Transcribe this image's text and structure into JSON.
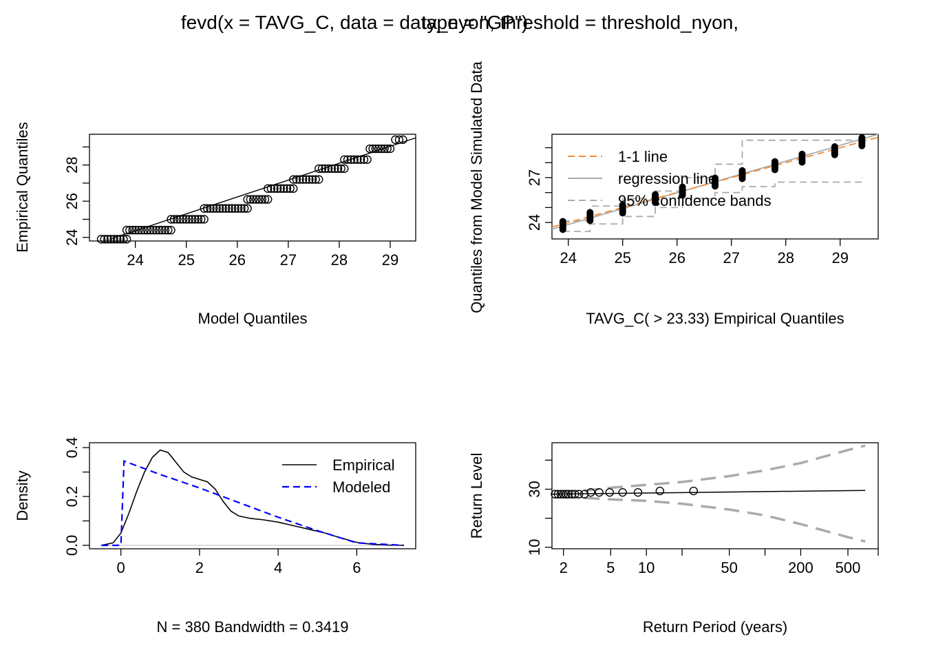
{
  "title": {
    "line1": "fevd(x = TAVG_C, data = data_nyon, threshold = threshold_nyon,",
    "line2": "type = \"GP\")"
  },
  "chart_data": [
    {
      "type": "scatter",
      "panel": "qq-plot",
      "xlabel": "Model Quantiles",
      "ylabel": "Empirical Quantiles",
      "xlim": [
        23.1,
        29.5
      ],
      "ylim": [
        23.8,
        29.7
      ],
      "xticks": [
        24,
        25,
        26,
        27,
        28,
        29
      ],
      "yticks": [
        24,
        26,
        28
      ],
      "steps": [
        {
          "y": 23.9,
          "x0": 23.33,
          "x1": 23.83
        },
        {
          "y": 24.4,
          "x0": 23.83,
          "x1": 24.7
        },
        {
          "y": 25.0,
          "x0": 24.7,
          "x1": 25.35
        },
        {
          "y": 25.6,
          "x0": 25.35,
          "x1": 26.2
        },
        {
          "y": 26.1,
          "x0": 26.2,
          "x1": 26.6
        },
        {
          "y": 26.7,
          "x0": 26.6,
          "x1": 27.1
        },
        {
          "y": 27.2,
          "x0": 27.1,
          "x1": 27.6
        },
        {
          "y": 27.8,
          "x0": 27.6,
          "x1": 28.1
        },
        {
          "y": 28.3,
          "x0": 28.1,
          "x1": 28.55
        },
        {
          "y": 28.9,
          "x0": 28.6,
          "x1": 29.0
        },
        {
          "y": 29.4,
          "x0": 29.1,
          "x1": 29.25
        }
      ],
      "fit_line": [
        [
          23.5,
          23.9
        ],
        [
          29.5,
          29.5
        ]
      ]
    },
    {
      "type": "scatter",
      "panel": "qq-simulated",
      "xlabel": "TAVG_C( > 23.33) Empirical Quantiles",
      "ylabel": "Quantiles from Model Simulated Data",
      "xlim": [
        23.7,
        29.7
      ],
      "ylim": [
        22.9,
        29.9
      ],
      "xticks": [
        24,
        25,
        26,
        27,
        28,
        29
      ],
      "yticks": [
        24,
        27
      ],
      "legend": {
        "items": [
          {
            "label": "1-1 line",
            "color": "#f28a30",
            "style": "dashed"
          },
          {
            "label": "regression line",
            "color": "#aaaaaa",
            "style": "solid"
          },
          {
            "label": "95% confidence bands",
            "color": "#aaaaaa",
            "style": "dashed"
          }
        ],
        "position": "top-left"
      },
      "x_points": [
        23.9,
        24.4,
        25.0,
        25.6,
        26.1,
        26.7,
        27.2,
        27.8,
        28.3,
        28.9,
        29.4
      ],
      "y_points": [
        23.8,
        24.4,
        24.9,
        25.6,
        26.1,
        26.7,
        27.2,
        27.8,
        28.3,
        28.8,
        29.4
      ],
      "upper_band": [
        [
          23.9,
          24.1
        ],
        [
          24.4,
          25.1
        ],
        [
          25.0,
          25.6
        ],
        [
          25.6,
          26.1
        ],
        [
          26.1,
          27.0
        ],
        [
          26.7,
          27.9
        ],
        [
          27.2,
          29.5
        ],
        [
          29.4,
          29.5
        ]
      ],
      "lower_band": [
        [
          23.9,
          23.4
        ],
        [
          24.4,
          23.9
        ],
        [
          25.0,
          24.4
        ],
        [
          25.6,
          25.0
        ],
        [
          26.1,
          25.6
        ],
        [
          26.7,
          26.0
        ],
        [
          27.2,
          26.4
        ],
        [
          27.8,
          26.7
        ],
        [
          29.4,
          27.0
        ]
      ]
    },
    {
      "type": "line",
      "panel": "density",
      "xlabel": "N = 380   Bandwidth = 0.3419",
      "ylabel": "Density",
      "xlim": [
        -0.8,
        7.5
      ],
      "ylim": [
        0,
        0.42
      ],
      "xticks": [
        0,
        2,
        4,
        6
      ],
      "yticks": [
        0.0,
        0.2,
        0.4
      ],
      "legend": {
        "items": [
          {
            "label": "Empirical",
            "color": "#000000",
            "style": "solid"
          },
          {
            "label": "Modeled",
            "color": "#0000ff",
            "style": "dashed"
          }
        ],
        "position": "top-right"
      },
      "series": [
        {
          "name": "Empirical",
          "x": [
            -0.5,
            -0.2,
            0.0,
            0.2,
            0.4,
            0.6,
            0.8,
            1.0,
            1.2,
            1.4,
            1.6,
            1.8,
            2.0,
            2.2,
            2.4,
            2.6,
            2.8,
            3.0,
            3.3,
            3.6,
            4.0,
            4.4,
            4.8,
            5.2,
            5.6,
            6.0,
            6.4,
            6.8,
            7.2
          ],
          "y": [
            0.0,
            0.01,
            0.05,
            0.13,
            0.22,
            0.3,
            0.36,
            0.39,
            0.38,
            0.34,
            0.3,
            0.28,
            0.27,
            0.26,
            0.23,
            0.18,
            0.14,
            0.12,
            0.11,
            0.105,
            0.095,
            0.08,
            0.065,
            0.05,
            0.03,
            0.012,
            0.004,
            0.001,
            0.0
          ]
        },
        {
          "name": "Modeled",
          "x": [
            -0.5,
            0.0,
            0.08,
            1.0,
            2.0,
            3.0,
            4.0,
            5.0,
            6.0,
            7.2
          ],
          "y": [
            0.0,
            0.0,
            0.345,
            0.29,
            0.235,
            0.175,
            0.115,
            0.06,
            0.01,
            0.0
          ]
        }
      ]
    },
    {
      "type": "line",
      "panel": "return-level",
      "xlabel": "Return Period (years)",
      "ylabel": "Return Level",
      "log_x": true,
      "xlim": [
        1.6,
        900
      ],
      "ylim": [
        9.5,
        46
      ],
      "xticks": [
        2,
        5,
        10,
        50,
        200,
        500
      ],
      "xticks_minor": [
        20,
        100,
        1000
      ],
      "yticks": [
        10,
        30
      ],
      "yticks_minor": [
        20,
        40
      ],
      "estimate": {
        "x": [
          1.6,
          700
        ],
        "y": [
          28.3,
          29.6
        ]
      },
      "upper_ci": {
        "x": [
          3,
          5,
          10,
          20,
          50,
          100,
          200,
          500,
          700
        ],
        "y": [
          29.5,
          30.5,
          31.5,
          32.5,
          34.5,
          36.5,
          39.0,
          43.5,
          45.0
        ]
      },
      "lower_ci": {
        "x": [
          3,
          5,
          10,
          20,
          50,
          100,
          200,
          500,
          700
        ],
        "y": [
          27.0,
          26.5,
          26.0,
          25.0,
          23.0,
          21.0,
          18.0,
          13.5,
          12.0
        ]
      },
      "points": {
        "x": [
          1.7,
          1.8,
          1.9,
          2.0,
          2.1,
          2.2,
          2.35,
          2.5,
          2.7,
          3.0,
          3.4,
          4.0,
          4.9,
          6.3,
          8.5,
          13.0,
          25.0
        ],
        "y": [
          28.3,
          28.3,
          28.3,
          28.3,
          28.3,
          28.3,
          28.3,
          28.3,
          28.3,
          28.3,
          28.9,
          28.9,
          28.9,
          28.9,
          28.9,
          29.4,
          29.4
        ]
      }
    }
  ]
}
